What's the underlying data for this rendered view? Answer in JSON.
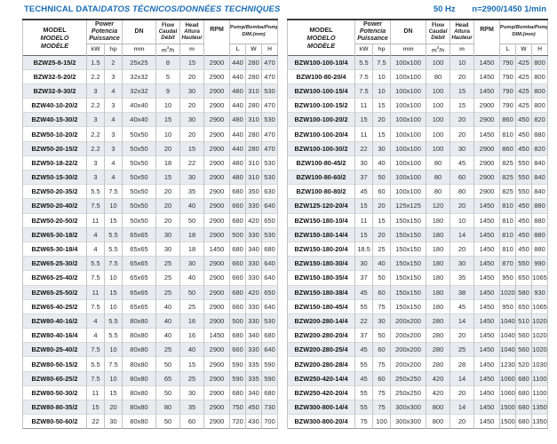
{
  "page": {
    "title_en": "TECHNICAL DATA/",
    "title_intl": "DATOS TÉCNICOS/DONNÉES TECHNIQUES",
    "frequency": "50 Hz",
    "speed": "n=2900/1450 1/min"
  },
  "colors": {
    "accent_blue": "#1a6db5",
    "alt_row_bg": "#e8ebf0"
  },
  "header": {
    "model": [
      "MODEL",
      "MODELO",
      "MODÈLE"
    ],
    "power": [
      "Power",
      "Potencia",
      "Puissance"
    ],
    "power_units": [
      "kW",
      "hp"
    ],
    "dn": "DN",
    "dn_unit": "mm",
    "flow": [
      "Flow",
      "Caudal",
      "Débit"
    ],
    "flow_unit_base": "m",
    "flow_unit_sup": "3",
    "flow_unit_tail": "/h",
    "head": [
      "Head",
      "Altura",
      "Hauteur"
    ],
    "head_unit": "m",
    "rpm": "RPM",
    "pump_dim_en": "Pump/",
    "pump_dim_intl": "Bomba/Pompe",
    "pump_dim_unit": "DIM.(mm)",
    "dim_units": [
      "L",
      "W",
      "H"
    ]
  },
  "tables": [
    {
      "id": "left",
      "rows": [
        [
          "BZW25-8-15/2",
          "1.5",
          "2",
          "25x25",
          "8",
          "15",
          "2900",
          "440",
          "280",
          "470"
        ],
        [
          "BZW32-5-20/2",
          "2.2",
          "3",
          "32x32",
          "5",
          "20",
          "2900",
          "440",
          "280",
          "470"
        ],
        [
          "BZW32-9-30/2",
          "3",
          "4",
          "32x32",
          "9",
          "30",
          "2900",
          "480",
          "310",
          "530"
        ],
        [
          "BZW40-10-20/2",
          "2.2",
          "3",
          "40x40",
          "10",
          "20",
          "2900",
          "440",
          "280",
          "470"
        ],
        [
          "BZW40-15-30/2",
          "3",
          "4",
          "40x40",
          "15",
          "30",
          "2900",
          "480",
          "310",
          "530"
        ],
        [
          "BZW50-10-20/2",
          "2.2",
          "3",
          "50x50",
          "10",
          "20",
          "2900",
          "440",
          "280",
          "470"
        ],
        [
          "BZW50-20-15/2",
          "2.2",
          "3",
          "50x50",
          "20",
          "15",
          "2900",
          "440",
          "280",
          "470"
        ],
        [
          "BZW50-18-22/2",
          "3",
          "4",
          "50x50",
          "18",
          "22",
          "2900",
          "480",
          "310",
          "530"
        ],
        [
          "BZW50-15-30/2",
          "3",
          "4",
          "50x50",
          "15",
          "30",
          "2900",
          "480",
          "310",
          "530"
        ],
        [
          "BZW50-20-35/2",
          "5.5",
          "7.5",
          "50x50",
          "20",
          "35",
          "2900",
          "680",
          "350",
          "630"
        ],
        [
          "BZW50-20-40/2",
          "7.5",
          "10",
          "50x50",
          "20",
          "40",
          "2900",
          "660",
          "330",
          "640"
        ],
        [
          "BZW50-20-50/2",
          "11",
          "15",
          "50x50",
          "20",
          "50",
          "2900",
          "680",
          "420",
          "650"
        ],
        [
          "BZW65-30-18/2",
          "4",
          "5.5",
          "65x65",
          "30",
          "18",
          "2900",
          "500",
          "330",
          "530"
        ],
        [
          "BZW65-30-18/4",
          "4",
          "5.5",
          "65x65",
          "30",
          "18",
          "1450",
          "680",
          "340",
          "680"
        ],
        [
          "BZW65-25-30/2",
          "5.5",
          "7.5",
          "65x65",
          "25",
          "30",
          "2900",
          "660",
          "330",
          "640"
        ],
        [
          "BZW65-25-40/2",
          "7.5",
          "10",
          "65x65",
          "25",
          "40",
          "2900",
          "660",
          "330",
          "640"
        ],
        [
          "BZW65-25-50/2",
          "11",
          "15",
          "65x65",
          "25",
          "50",
          "2900",
          "680",
          "420",
          "650"
        ],
        [
          "BZW65-40-25/2",
          "7.5",
          "10",
          "65x65",
          "40",
          "25",
          "2900",
          "660",
          "330",
          "640"
        ],
        [
          "BZW80-40-16/2",
          "4",
          "5.5",
          "80x80",
          "40",
          "16",
          "2900",
          "500",
          "330",
          "530"
        ],
        [
          "BZW80-40-16/4",
          "4",
          "5.5",
          "80x80",
          "40",
          "16",
          "1450",
          "680",
          "340",
          "680"
        ],
        [
          "BZW80-25-40/2",
          "7.5",
          "10",
          "80x80",
          "25",
          "40",
          "2900",
          "660",
          "330",
          "640"
        ],
        [
          "BZW80-50-15/2",
          "5.5",
          "7.5",
          "80x80",
          "50",
          "15",
          "2900",
          "590",
          "335",
          "590"
        ],
        [
          "BZW80-65-25/2",
          "7.5",
          "10",
          "80x80",
          "65",
          "25",
          "2900",
          "590",
          "335",
          "590"
        ],
        [
          "BZW80-50-30/2",
          "11",
          "15",
          "80x80",
          "50",
          "30",
          "2900",
          "680",
          "340",
          "680"
        ],
        [
          "BZW80-80-35/2",
          "15",
          "20",
          "80x80",
          "80",
          "35",
          "2900",
          "750",
          "450",
          "730"
        ],
        [
          "BZW80-50-60/2",
          "22",
          "30",
          "80x80",
          "50",
          "60",
          "2900",
          "720",
          "430",
          "700"
        ]
      ]
    },
    {
      "id": "right",
      "rows": [
        [
          "BZW100-100-10/4",
          "5.5",
          "7.5",
          "100x100",
          "100",
          "10",
          "1450",
          "790",
          "425",
          "800"
        ],
        [
          "BZW100-80-20/4",
          "7.5",
          "10",
          "100x100",
          "80",
          "20",
          "1450",
          "790",
          "425",
          "800"
        ],
        [
          "BZW100-100-15/4",
          "7.5",
          "10",
          "100x100",
          "100",
          "15",
          "1450",
          "790",
          "425",
          "800"
        ],
        [
          "BZW100-100-15/2",
          "11",
          "15",
          "100x100",
          "100",
          "15",
          "2900",
          "790",
          "425",
          "800"
        ],
        [
          "BZW100-100-20/2",
          "15",
          "20",
          "100x100",
          "100",
          "20",
          "2900",
          "860",
          "450",
          "820"
        ],
        [
          "BZW100-100-20/4",
          "11",
          "15",
          "100x100",
          "100",
          "20",
          "1450",
          "810",
          "450",
          "880"
        ],
        [
          "BZW100-100-30/2",
          "22",
          "30",
          "100x100",
          "100",
          "30",
          "2900",
          "860",
          "450",
          "820"
        ],
        [
          "BZW100-80-45/2",
          "30",
          "40",
          "100x100",
          "80",
          "45",
          "2900",
          "825",
          "550",
          "840"
        ],
        [
          "BZW100-80-60/2",
          "37",
          "50",
          "100x100",
          "80",
          "60",
          "2900",
          "825",
          "550",
          "840"
        ],
        [
          "BZW100-80-80/2",
          "45",
          "60",
          "100x100",
          "80",
          "80",
          "2900",
          "825",
          "550",
          "840"
        ],
        [
          "BZW125-120-20/4",
          "15",
          "20",
          "125x125",
          "120",
          "20",
          "1450",
          "810",
          "450",
          "880"
        ],
        [
          "BZW150-180-10/4",
          "11",
          "15",
          "150x150",
          "180",
          "10",
          "1450",
          "810",
          "450",
          "880"
        ],
        [
          "BZW150-180-14/4",
          "15",
          "20",
          "150x150",
          "180",
          "14",
          "1450",
          "810",
          "450",
          "880"
        ],
        [
          "BZW150-180-20/4",
          "18.5",
          "25",
          "150x150",
          "180",
          "20",
          "1450",
          "810",
          "450",
          "880"
        ],
        [
          "BZW150-180-30/4",
          "30",
          "40",
          "150x150",
          "180",
          "30",
          "1450",
          "870",
          "550",
          "990"
        ],
        [
          "BZW150-180-35/4",
          "37",
          "50",
          "150x150",
          "180",
          "35",
          "1450",
          "950",
          "650",
          "1065"
        ],
        [
          "BZW150-180-38/4",
          "45",
          "60",
          "150x150",
          "180",
          "38",
          "1450",
          "1020",
          "580",
          "930"
        ],
        [
          "BZW150-180-45/4",
          "55",
          "75",
          "150x150",
          "180",
          "45",
          "1450",
          "950",
          "650",
          "1065"
        ],
        [
          "BZW200-280-14/4",
          "22",
          "30",
          "200x200",
          "280",
          "14",
          "1450",
          "1040",
          "510",
          "1020"
        ],
        [
          "BZW200-280-20/4",
          "37",
          "50",
          "200x200",
          "280",
          "20",
          "1450",
          "1040",
          "560",
          "1020"
        ],
        [
          "BZW200-280-25/4",
          "45",
          "60",
          "200x200",
          "280",
          "25",
          "1450",
          "1040",
          "560",
          "1020"
        ],
        [
          "BZW200-280-28/4",
          "55",
          "75",
          "200x200",
          "280",
          "28",
          "1450",
          "1230",
          "520",
          "1030"
        ],
        [
          "BZW250-420-14/4",
          "45",
          "60",
          "250x250",
          "420",
          "14",
          "1450",
          "1060",
          "680",
          "1100"
        ],
        [
          "BZW250-420-20/4",
          "55",
          "75",
          "250x250",
          "420",
          "20",
          "1450",
          "1060",
          "680",
          "1100"
        ],
        [
          "BZW300-800-14/4",
          "55",
          "75",
          "300x300",
          "800",
          "14",
          "1450",
          "1500",
          "680",
          "1350"
        ],
        [
          "BZW300-800-20/4",
          "75",
          "100",
          "300x300",
          "800",
          "20",
          "1450",
          "1500",
          "680",
          "1350"
        ]
      ]
    }
  ]
}
